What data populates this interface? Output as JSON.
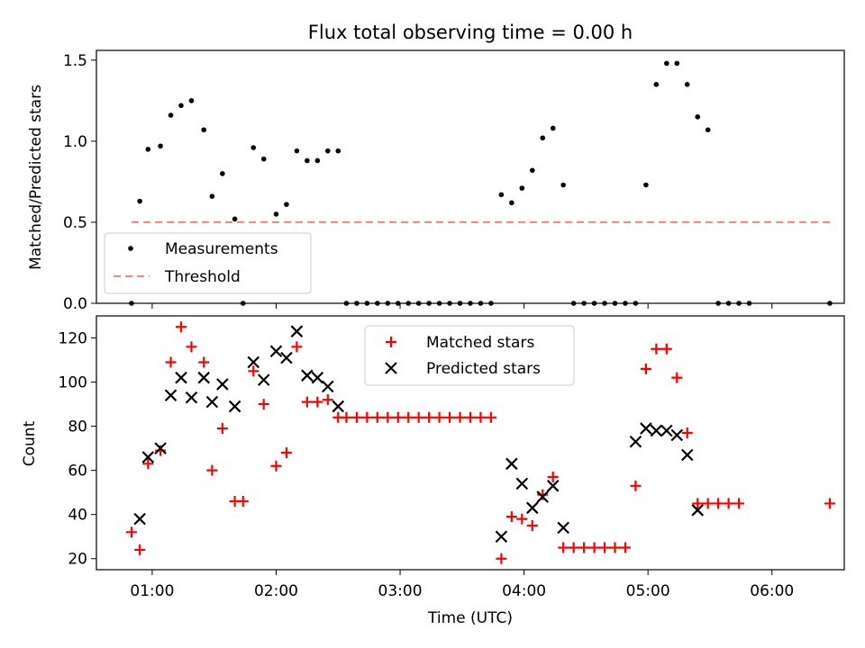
{
  "chart_data": [
    {
      "type": "scatter",
      "title": "Flux total observing time = 0.00 h",
      "xlabel": "",
      "ylabel": "Matched/Predicted stars",
      "ylim": [
        0,
        1.56
      ],
      "yticks": [
        0,
        0.5,
        1.0,
        1.5
      ],
      "ytick_labels": [
        "0.0",
        "0.5",
        "1.0",
        "1.5"
      ],
      "grid": false,
      "legend_position": "lower-left",
      "series": [
        {
          "name": "Measurements",
          "style": "dot",
          "color": "#000000",
          "points": [
            [
              "00:50",
              0
            ],
            [
              "00:54",
              0.63
            ],
            [
              "00:58",
              0.95
            ],
            [
              "01:04",
              0.97
            ],
            [
              "01:09",
              1.16
            ],
            [
              "01:14",
              1.22
            ],
            [
              "01:19",
              1.25
            ],
            [
              "01:25",
              1.07
            ],
            [
              "01:29",
              0.66
            ],
            [
              "01:34",
              0.8
            ],
            [
              "01:40",
              0.52
            ],
            [
              "01:44",
              0
            ],
            [
              "01:49",
              0.96
            ],
            [
              "01:54",
              0.89
            ],
            [
              "02:00",
              0.55
            ],
            [
              "02:05",
              0.61
            ],
            [
              "02:10",
              0.94
            ],
            [
              "02:15",
              0.88
            ],
            [
              "02:20",
              0.88
            ],
            [
              "02:25",
              0.94
            ],
            [
              "02:30",
              0.94
            ],
            [
              "02:34",
              0
            ],
            [
              "02:39",
              0
            ],
            [
              "02:44",
              0
            ],
            [
              "02:49",
              0
            ],
            [
              "02:54",
              0
            ],
            [
              "02:59",
              0
            ],
            [
              "03:04",
              0
            ],
            [
              "03:09",
              0
            ],
            [
              "03:14",
              0
            ],
            [
              "03:19",
              0
            ],
            [
              "03:24",
              0
            ],
            [
              "03:29",
              0
            ],
            [
              "03:34",
              0
            ],
            [
              "03:39",
              0
            ],
            [
              "03:44",
              0
            ],
            [
              "03:49",
              0.67
            ],
            [
              "03:54",
              0.62
            ],
            [
              "03:59",
              0.71
            ],
            [
              "04:04",
              0.82
            ],
            [
              "04:09",
              1.02
            ],
            [
              "04:14",
              1.08
            ],
            [
              "04:19",
              0.73
            ],
            [
              "04:24",
              0
            ],
            [
              "04:29",
              0
            ],
            [
              "04:34",
              0
            ],
            [
              "04:39",
              0
            ],
            [
              "04:44",
              0
            ],
            [
              "04:49",
              0
            ],
            [
              "04:54",
              0
            ],
            [
              "04:59",
              0.73
            ],
            [
              "05:04",
              1.35
            ],
            [
              "05:09",
              1.48
            ],
            [
              "05:14",
              1.48
            ],
            [
              "05:19",
              1.35
            ],
            [
              "05:24",
              1.15
            ],
            [
              "05:29",
              1.07
            ],
            [
              "05:34",
              0
            ],
            [
              "05:39",
              0
            ],
            [
              "05:44",
              0
            ],
            [
              "05:49",
              0
            ],
            [
              "06:28",
              0
            ]
          ]
        },
        {
          "name": "Threshold",
          "style": "dashed-line",
          "color": "#ff7f7f",
          "points": [
            [
              "00:50",
              0.5
            ],
            [
              "06:28",
              0.5
            ]
          ]
        }
      ]
    },
    {
      "type": "scatter",
      "title": "",
      "xlabel": "Time (UTC)",
      "ylabel": "Count",
      "ylim": [
        15,
        130
      ],
      "yticks": [
        20,
        40,
        60,
        80,
        100,
        120
      ],
      "xlim": [
        "00:33",
        "06:35"
      ],
      "xticks": [
        "01:00",
        "02:00",
        "03:00",
        "04:00",
        "05:00",
        "06:00"
      ],
      "grid": false,
      "legend_position": "upper-center",
      "series": [
        {
          "name": "Matched stars",
          "marker": "plus",
          "color": "#ff0000",
          "points": [
            [
              "00:50",
              32
            ],
            [
              "00:54",
              24
            ],
            [
              "00:58",
              63
            ],
            [
              "01:04",
              69
            ],
            [
              "01:09",
              109
            ],
            [
              "01:14",
              125
            ],
            [
              "01:19",
              116
            ],
            [
              "01:25",
              109
            ],
            [
              "01:29",
              60
            ],
            [
              "01:34",
              79
            ],
            [
              "01:40",
              46
            ],
            [
              "01:44",
              46
            ],
            [
              "01:49",
              105
            ],
            [
              "01:54",
              90
            ],
            [
              "02:00",
              62
            ],
            [
              "02:05",
              68
            ],
            [
              "02:10",
              116
            ],
            [
              "02:15",
              91
            ],
            [
              "02:20",
              91
            ],
            [
              "02:25",
              92
            ],
            [
              "02:30",
              84
            ],
            [
              "02:34",
              84
            ],
            [
              "02:39",
              84
            ],
            [
              "02:44",
              84
            ],
            [
              "02:49",
              84
            ],
            [
              "02:54",
              84
            ],
            [
              "02:59",
              84
            ],
            [
              "03:04",
              84
            ],
            [
              "03:09",
              84
            ],
            [
              "03:14",
              84
            ],
            [
              "03:19",
              84
            ],
            [
              "03:24",
              84
            ],
            [
              "03:29",
              84
            ],
            [
              "03:34",
              84
            ],
            [
              "03:39",
              84
            ],
            [
              "03:44",
              84
            ],
            [
              "03:49",
              20
            ],
            [
              "03:54",
              39
            ],
            [
              "03:59",
              38
            ],
            [
              "04:04",
              35
            ],
            [
              "04:09",
              49
            ],
            [
              "04:14",
              57
            ],
            [
              "04:19",
              25
            ],
            [
              "04:24",
              25
            ],
            [
              "04:29",
              25
            ],
            [
              "04:34",
              25
            ],
            [
              "04:39",
              25
            ],
            [
              "04:44",
              25
            ],
            [
              "04:49",
              25
            ],
            [
              "04:54",
              53
            ],
            [
              "04:59",
              106
            ],
            [
              "05:04",
              115
            ],
            [
              "05:09",
              115
            ],
            [
              "05:14",
              102
            ],
            [
              "05:19",
              77
            ],
            [
              "05:24",
              45
            ],
            [
              "05:29",
              45
            ],
            [
              "05:34",
              45
            ],
            [
              "05:39",
              45
            ],
            [
              "05:44",
              45
            ],
            [
              "06:28",
              45
            ]
          ]
        },
        {
          "name": "Predicted stars",
          "marker": "x",
          "color": "#000000",
          "points": [
            [
              "00:54",
              38
            ],
            [
              "00:58",
              66
            ],
            [
              "01:04",
              70
            ],
            [
              "01:09",
              94
            ],
            [
              "01:14",
              102
            ],
            [
              "01:19",
              93
            ],
            [
              "01:25",
              102
            ],
            [
              "01:29",
              91
            ],
            [
              "01:34",
              99
            ],
            [
              "01:40",
              89
            ],
            [
              "01:49",
              109
            ],
            [
              "01:54",
              101
            ],
            [
              "02:00",
              114
            ],
            [
              "02:05",
              111
            ],
            [
              "02:10",
              123
            ],
            [
              "02:15",
              103
            ],
            [
              "02:20",
              102
            ],
            [
              "02:25",
              98
            ],
            [
              "02:30",
              89
            ],
            [
              "03:49",
              30
            ],
            [
              "03:54",
              63
            ],
            [
              "03:59",
              54
            ],
            [
              "04:04",
              43
            ],
            [
              "04:09",
              48
            ],
            [
              "04:14",
              53
            ],
            [
              "04:19",
              34
            ],
            [
              "04:54",
              73
            ],
            [
              "04:59",
              79
            ],
            [
              "05:04",
              78
            ],
            [
              "05:09",
              78
            ],
            [
              "05:14",
              76
            ],
            [
              "05:19",
              67
            ],
            [
              "05:24",
              42
            ]
          ]
        }
      ]
    }
  ]
}
